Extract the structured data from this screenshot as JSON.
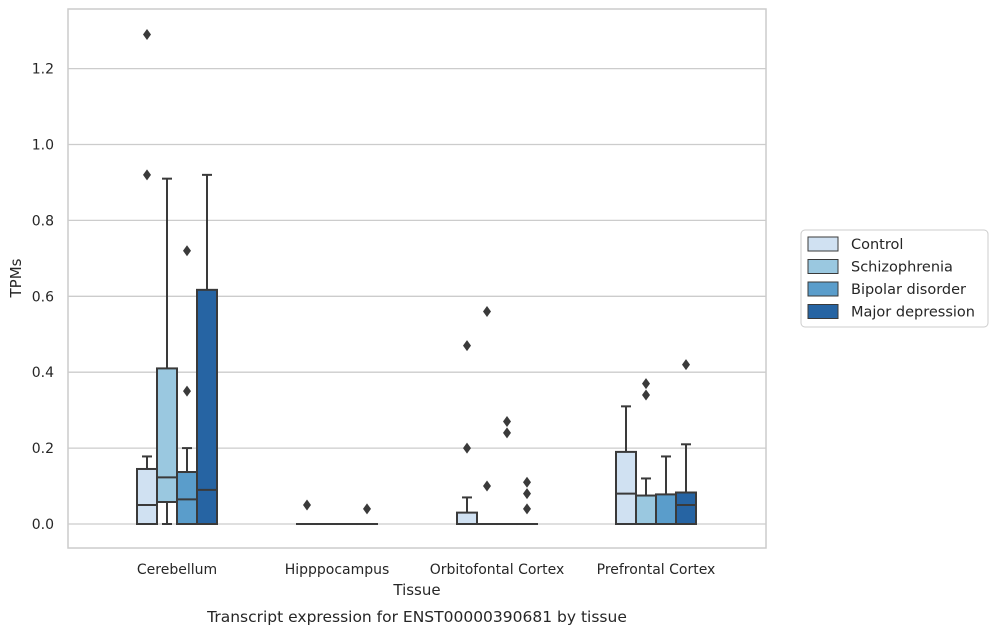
{
  "caption": "Transcript expression for ENST00000390681 by tissue",
  "chart_data": {
    "type": "box",
    "xlabel": "Tissue",
    "ylabel": "TPMs",
    "ylim": [
      -0.065,
      1.36
    ],
    "yticks": [
      "0.0",
      "0.2",
      "0.4",
      "0.6",
      "0.8",
      "1.0",
      "1.2"
    ],
    "grid": "horizontal",
    "legend_position": "right",
    "categories": [
      "Cerebellum",
      "Hipppocampus",
      "Orbitofontal Cortex",
      "Prefrontal Cortex"
    ],
    "series": [
      {
        "name": "Control",
        "color": "#d0e1f2",
        "boxes": [
          {
            "whislo": 0.0,
            "q1": 0.0,
            "med": 0.05,
            "q3": 0.145,
            "whishi": 0.178,
            "fliers": [
              0.92,
              1.29
            ]
          },
          {
            "whislo": 0.0,
            "q1": 0.0,
            "med": 0.0,
            "q3": 0.0,
            "whishi": 0.0,
            "fliers": [
              0.05
            ]
          },
          {
            "whislo": 0.0,
            "q1": 0.0,
            "med": 0.0,
            "q3": 0.03,
            "whishi": 0.07,
            "fliers": [
              0.2,
              0.47
            ]
          },
          {
            "whislo": 0.0,
            "q1": 0.0,
            "med": 0.08,
            "q3": 0.19,
            "whishi": 0.31,
            "fliers": []
          }
        ]
      },
      {
        "name": "Schizophrenia",
        "color": "#9ac8e0",
        "boxes": [
          {
            "whislo": 0.0,
            "q1": 0.058,
            "med": 0.123,
            "q3": 0.41,
            "whishi": 0.91,
            "fliers": []
          },
          {
            "whislo": 0.0,
            "q1": 0.0,
            "med": 0.0,
            "q3": 0.0,
            "whishi": 0.0,
            "fliers": []
          },
          {
            "whislo": 0.0,
            "q1": 0.0,
            "med": 0.0,
            "q3": 0.0,
            "whishi": 0.0,
            "fliers": [
              0.1,
              0.56
            ]
          },
          {
            "whislo": 0.0,
            "q1": 0.0,
            "med": 0.0,
            "q3": 0.075,
            "whishi": 0.12,
            "fliers": [
              0.34,
              0.37
            ]
          }
        ]
      },
      {
        "name": "Bipolar disorder",
        "color": "#5a9dcb",
        "boxes": [
          {
            "whislo": 0.0,
            "q1": 0.0,
            "med": 0.065,
            "q3": 0.137,
            "whishi": 0.2,
            "fliers": [
              0.35,
              0.72
            ]
          },
          {
            "whislo": 0.0,
            "q1": 0.0,
            "med": 0.0,
            "q3": 0.0,
            "whishi": 0.0,
            "fliers": []
          },
          {
            "whislo": 0.0,
            "q1": 0.0,
            "med": 0.0,
            "q3": 0.0,
            "whishi": 0.0,
            "fliers": [
              0.24,
              0.27
            ]
          },
          {
            "whislo": 0.0,
            "q1": 0.0,
            "med": 0.0,
            "q3": 0.078,
            "whishi": 0.178,
            "fliers": []
          }
        ]
      },
      {
        "name": "Major depression",
        "color": "#2664a3",
        "boxes": [
          {
            "whislo": 0.0,
            "q1": 0.0,
            "med": 0.09,
            "q3": 0.617,
            "whishi": 0.92,
            "fliers": []
          },
          {
            "whislo": 0.0,
            "q1": 0.0,
            "med": 0.0,
            "q3": 0.0,
            "whishi": 0.0,
            "fliers": [
              0.04
            ]
          },
          {
            "whislo": 0.0,
            "q1": 0.0,
            "med": 0.0,
            "q3": 0.0,
            "whishi": 0.0,
            "fliers": [
              0.04,
              0.08,
              0.11
            ]
          },
          {
            "whislo": 0.0,
            "q1": 0.0,
            "med": 0.05,
            "q3": 0.083,
            "whishi": 0.21,
            "fliers": [
              0.42
            ]
          }
        ]
      }
    ]
  }
}
